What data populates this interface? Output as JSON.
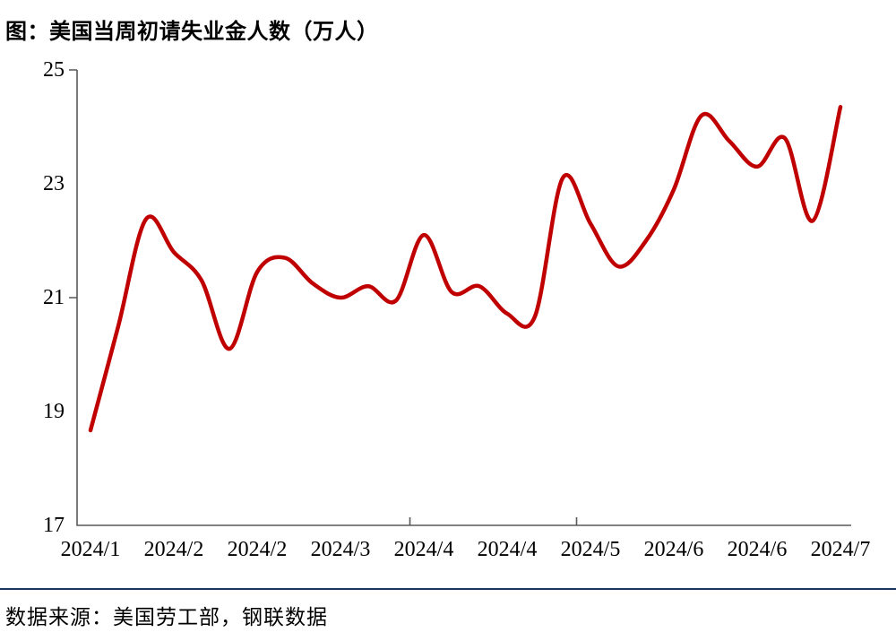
{
  "page": {
    "background": "#ffffff"
  },
  "colors": {
    "line": "#C00000",
    "axis": "#595959",
    "divider": "#17375E",
    "text": "#000000"
  },
  "chart_data": {
    "type": "line",
    "title": "图：美国当周初请失业金人数（万人）",
    "source": "数据来源：美国劳工部，钢联数据",
    "xlabel": "",
    "ylabel": "",
    "ylim": [
      17,
      25
    ],
    "y_ticks": [
      25,
      23,
      21,
      19,
      17
    ],
    "x_tick_labels": [
      "2024/1",
      "2024/2",
      "2024/2",
      "2024/3",
      "2024/4",
      "2024/4",
      "2024/5",
      "2024/6",
      "2024/6",
      "2024/7"
    ],
    "x_label_every": 3,
    "n_points": 28,
    "smooth": true,
    "grid": false,
    "legend": "none",
    "series": [
      {
        "name": "美国当周初请失业金人数（万人）",
        "color": "#C00000",
        "values": [
          18.67,
          20.5,
          22.38,
          21.8,
          21.3,
          20.1,
          21.45,
          21.7,
          21.25,
          21.0,
          21.2,
          20.95,
          22.1,
          21.1,
          21.2,
          20.72,
          20.67,
          23.1,
          22.3,
          21.55,
          22.0,
          22.9,
          24.2,
          23.75,
          23.3,
          23.8,
          22.35,
          24.35
        ]
      }
    ],
    "layout_hints": {
      "y_tick_marks_at_values": [
        25,
        21
      ],
      "x_inner_ticks_before_point_index": [
        12,
        18
      ],
      "line_width": 4.5
    }
  }
}
